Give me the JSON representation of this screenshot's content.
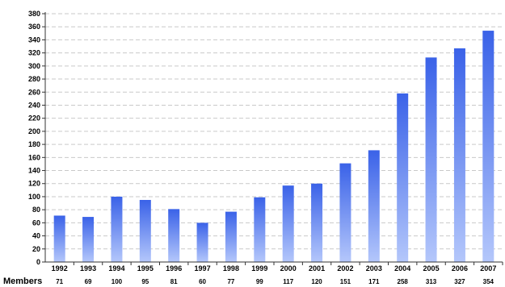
{
  "chart_data": {
    "type": "bar",
    "categories": [
      "1992",
      "1993",
      "1994",
      "1995",
      "1996",
      "1997",
      "1998",
      "1999",
      "2000",
      "2001",
      "2002",
      "2003",
      "2004",
      "2005",
      "2006",
      "2007"
    ],
    "values": [
      71,
      69,
      100,
      95,
      81,
      60,
      77,
      99,
      117,
      120,
      151,
      171,
      258,
      313,
      327,
      354
    ],
    "ylim": [
      0,
      380
    ],
    "ytick_step": 20,
    "grid": true,
    "bar_color_top": "#3a62e8",
    "bar_color_bottom": "#b4c7fb",
    "table_row_label": "Members",
    "table_values": [
      "71",
      "69",
      "100",
      "95",
      "81",
      "60",
      "77",
      "99",
      "117",
      "120",
      "151",
      "171",
      "258",
      "313",
      "327",
      "354"
    ]
  }
}
